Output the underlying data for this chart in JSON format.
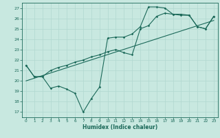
{
  "xlabel": "Humidex (Indice chaleur)",
  "bg_color": "#c8e8e0",
  "grid_color": "#b0d8d0",
  "line_color": "#1a6858",
  "xlim": [
    -0.5,
    23.5
  ],
  "ylim": [
    16.5,
    27.5
  ],
  "yticks": [
    17,
    18,
    19,
    20,
    21,
    22,
    23,
    24,
    25,
    26,
    27
  ],
  "xticks": [
    0,
    1,
    2,
    3,
    4,
    5,
    6,
    7,
    8,
    9,
    10,
    11,
    12,
    13,
    14,
    15,
    16,
    17,
    18,
    19,
    20,
    21,
    22,
    23
  ],
  "line1_x": [
    0,
    1,
    2,
    3,
    4,
    5,
    6,
    7,
    8,
    9,
    10,
    11,
    12,
    13,
    14,
    15,
    16,
    17,
    18,
    19,
    20,
    21,
    22,
    23
  ],
  "line1_y": [
    21.5,
    20.4,
    20.4,
    19.3,
    19.5,
    19.2,
    18.8,
    17.0,
    18.3,
    19.4,
    24.1,
    24.2,
    24.2,
    24.5,
    25.2,
    27.1,
    27.1,
    27.0,
    26.4,
    26.4,
    26.3,
    25.2,
    25.0,
    26.2
  ],
  "line2_x": [
    0,
    1,
    2,
    3,
    4,
    5,
    6,
    7,
    8,
    9,
    10,
    11,
    12,
    13,
    14,
    15,
    16,
    17,
    18,
    19,
    20,
    21,
    22,
    23
  ],
  "line2_y": [
    21.5,
    20.4,
    20.4,
    21.0,
    21.3,
    21.5,
    21.8,
    22.0,
    22.3,
    22.5,
    22.8,
    23.0,
    22.7,
    22.5,
    25.0,
    25.3,
    26.2,
    26.5,
    26.4,
    26.3,
    26.3,
    25.2,
    25.0,
    26.2
  ],
  "line3_x": [
    0,
    23
  ],
  "line3_y": [
    20.0,
    25.8
  ]
}
